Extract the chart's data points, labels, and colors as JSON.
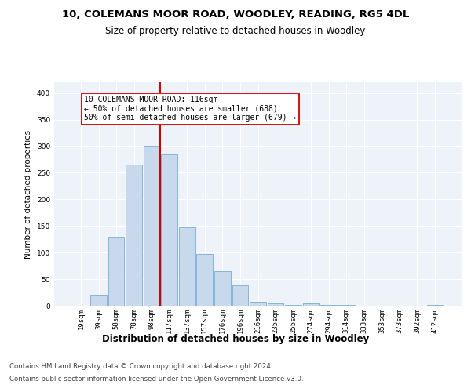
{
  "title1": "10, COLEMANS MOOR ROAD, WOODLEY, READING, RG5 4DL",
  "title2": "Size of property relative to detached houses in Woodley",
  "xlabel": "Distribution of detached houses by size in Woodley",
  "ylabel": "Number of detached properties",
  "footnote1": "Contains HM Land Registry data © Crown copyright and database right 2024.",
  "footnote2": "Contains public sector information licensed under the Open Government Licence v3.0.",
  "bar_labels": [
    "19sqm",
    "39sqm",
    "58sqm",
    "78sqm",
    "98sqm",
    "117sqm",
    "137sqm",
    "157sqm",
    "176sqm",
    "196sqm",
    "216sqm",
    "235sqm",
    "255sqm",
    "274sqm",
    "294sqm",
    "314sqm",
    "333sqm",
    "353sqm",
    "373sqm",
    "392sqm",
    "412sqm"
  ],
  "bar_heights": [
    0,
    20,
    130,
    265,
    300,
    285,
    148,
    98,
    65,
    38,
    8,
    5,
    1,
    4,
    2,
    1,
    0,
    0,
    0,
    0,
    1
  ],
  "bar_color": "#c9d9ed",
  "bar_edge_color": "#7aaed0",
  "vline_color": "#cc0000",
  "annotation_text": "10 COLEMANS MOOR ROAD: 116sqm\n← 50% of detached houses are smaller (688)\n50% of semi-detached houses are larger (679) →",
  "annotation_box_color": "#cc0000",
  "background_color": "#eef2f9",
  "grid_color": "#ffffff",
  "ylim": [
    0,
    420
  ],
  "yticks": [
    0,
    50,
    100,
    150,
    200,
    250,
    300,
    350,
    400
  ],
  "title1_fontsize": 9.5,
  "title2_fontsize": 8.5,
  "xlabel_fontsize": 8.5,
  "ylabel_fontsize": 7.5,
  "tick_fontsize": 6.5,
  "footnote_fontsize": 6.2,
  "annot_fontsize": 7.0
}
